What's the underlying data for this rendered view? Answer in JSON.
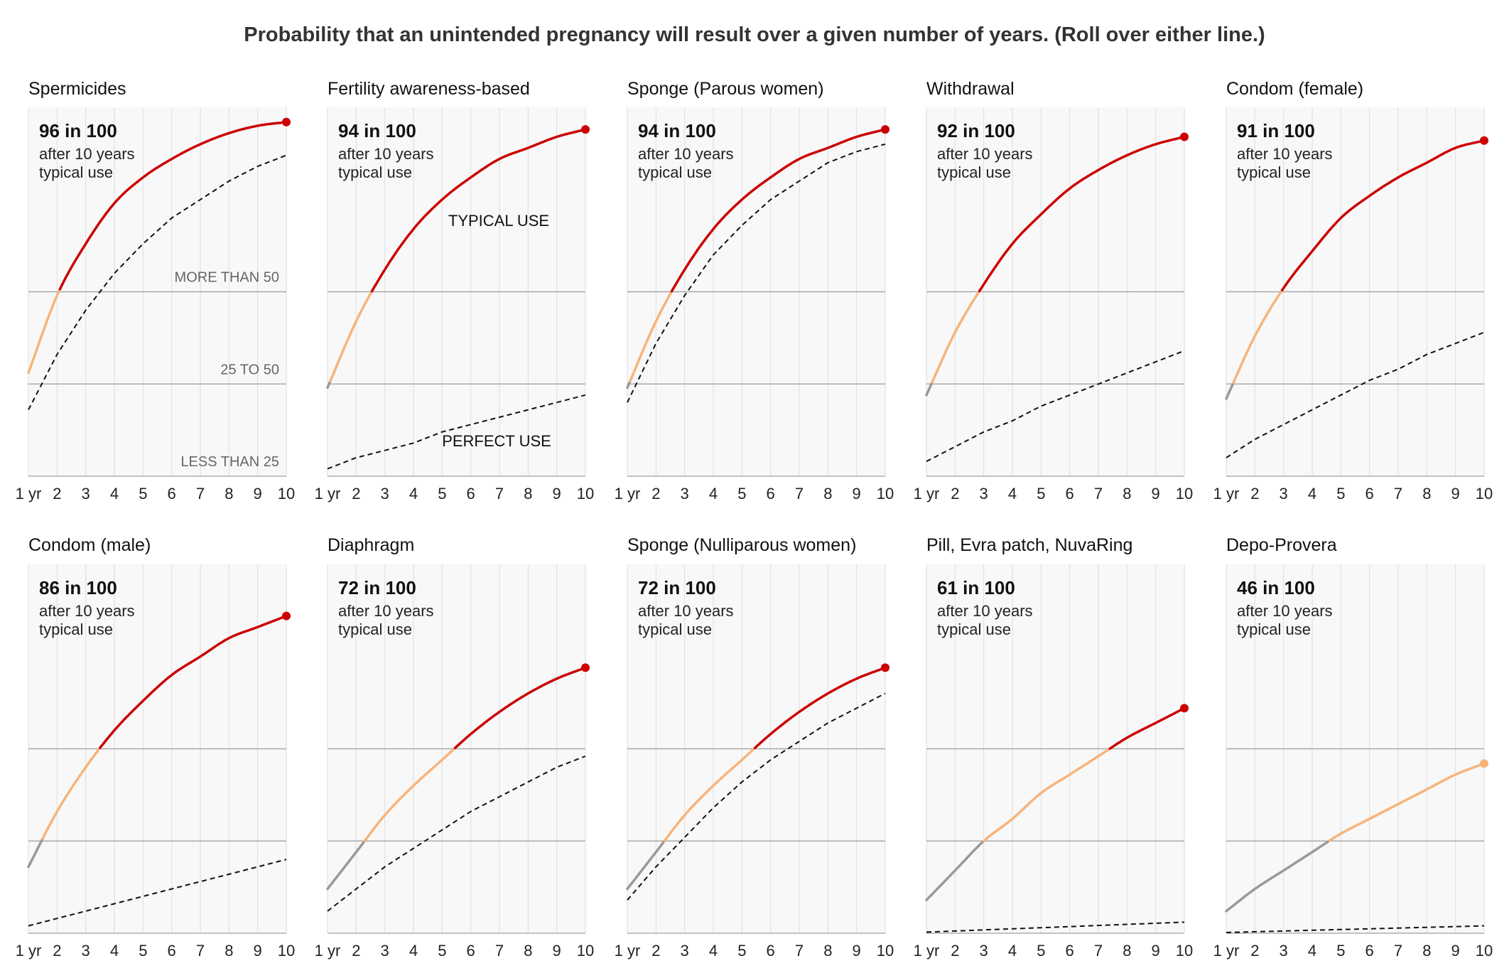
{
  "title": "Probability that an unintended pregnancy will result over a given number of years. (Roll over either line.)",
  "x_axis": {
    "tick_labels": [
      "1 yr",
      "2",
      "3",
      "4",
      "5",
      "6",
      "7",
      "8",
      "9",
      "10"
    ]
  },
  "bands": {
    "thresholds": [
      25,
      50
    ],
    "labels": {
      "high": "MORE THAN 50",
      "mid": "25 TO 50",
      "low": "LESS THAN 25"
    }
  },
  "series_labels": {
    "typical": "TYPICAL USE",
    "perfect": "PERFECT USE"
  },
  "colors": {
    "high": "#cc0000",
    "mid": "#f7b47a",
    "low": "#999999",
    "perfect": "#111111",
    "plot_bg": "#f8f8f8",
    "gridline": "#dddddd",
    "threshold": "#aaaaaa"
  },
  "chart_data": {
    "type": "line",
    "x": [
      1,
      2,
      3,
      4,
      5,
      6,
      7,
      8,
      9,
      10
    ],
    "ylim": [
      0,
      100
    ],
    "panels": [
      {
        "name": "Spermicides",
        "headline": "96 in 100",
        "sub1": "after 10 years",
        "sub2": "typical use",
        "typical": [
          28,
          49,
          63,
          74,
          81,
          86,
          90,
          93,
          95,
          96
        ],
        "perfect": [
          18,
          33,
          45,
          55,
          63,
          70,
          75,
          80,
          84,
          87
        ]
      },
      {
        "name": "Fertility awareness-based",
        "headline": "94 in 100",
        "sub1": "after 10 years",
        "sub2": "typical use",
        "typical": [
          24,
          42,
          56,
          67,
          75,
          81,
          86,
          89,
          92,
          94
        ],
        "perfect": [
          2,
          5,
          7,
          9,
          12,
          14,
          16,
          18,
          20,
          22
        ]
      },
      {
        "name": "Sponge (Parous women)",
        "headline": "94 in 100",
        "sub1": "after 10 years",
        "sub2": "typical use",
        "typical": [
          24,
          42,
          56,
          67,
          75,
          81,
          86,
          89,
          92,
          94
        ],
        "perfect": [
          20,
          36,
          49,
          60,
          68,
          75,
          80,
          85,
          88,
          90
        ]
      },
      {
        "name": "Withdrawal",
        "headline": "92 in 100",
        "sub1": "after 10 years",
        "sub2": "typical use",
        "typical": [
          22,
          39,
          52,
          63,
          71,
          78,
          83,
          87,
          90,
          92
        ],
        "perfect": [
          4,
          8,
          12,
          15,
          19,
          22,
          25,
          28,
          31,
          34
        ]
      },
      {
        "name": "Condom (female)",
        "headline": "91 in 100",
        "sub1": "after 10 years",
        "sub2": "typical use",
        "typical": [
          21,
          38,
          51,
          61,
          70,
          76,
          81,
          85,
          89,
          91
        ],
        "perfect": [
          5,
          10,
          14,
          18,
          22,
          26,
          29,
          33,
          36,
          39
        ]
      },
      {
        "name": "Condom (male)",
        "headline": "86 in 100",
        "sub1": "after 10 years",
        "sub2": "typical use",
        "typical": [
          18,
          33,
          45,
          55,
          63,
          70,
          75,
          80,
          83,
          86
        ],
        "perfect": [
          2,
          4,
          6,
          8,
          10,
          12,
          14,
          16,
          18,
          20
        ]
      },
      {
        "name": "Diaphragm",
        "headline": "72 in 100",
        "sub1": "after 10 years",
        "sub2": "typical use",
        "typical": [
          12,
          22,
          32,
          40,
          47,
          54,
          60,
          65,
          69,
          72
        ],
        "perfect": [
          6,
          12,
          18,
          23,
          28,
          33,
          37,
          41,
          45,
          48
        ]
      },
      {
        "name": "Sponge (Nulliparous women)",
        "headline": "72 in 100",
        "sub1": "after 10 years",
        "sub2": "typical use",
        "typical": [
          12,
          22,
          32,
          40,
          47,
          54,
          60,
          65,
          69,
          72
        ],
        "perfect": [
          9,
          18,
          26,
          34,
          41,
          47,
          52,
          57,
          61,
          65
        ]
      },
      {
        "name": "Pill, Evra patch, NuvaRing",
        "headline": "61 in 100",
        "sub1": "after 10 years",
        "sub2": "typical use",
        "typical": [
          9,
          17,
          25,
          31,
          38,
          43,
          48,
          53,
          57,
          61
        ],
        "perfect": [
          0.3,
          0.6,
          0.9,
          1.2,
          1.5,
          1.8,
          2.1,
          2.4,
          2.7,
          3
        ]
      },
      {
        "name": "Depo-Provera",
        "headline": "46 in 100",
        "sub1": "after 10 years",
        "sub2": "typical use",
        "typical": [
          6,
          12,
          17,
          22,
          27,
          31,
          35,
          39,
          43,
          46
        ],
        "perfect": [
          0.2,
          0.4,
          0.6,
          0.8,
          1,
          1.2,
          1.4,
          1.6,
          1.8,
          2
        ]
      }
    ]
  }
}
